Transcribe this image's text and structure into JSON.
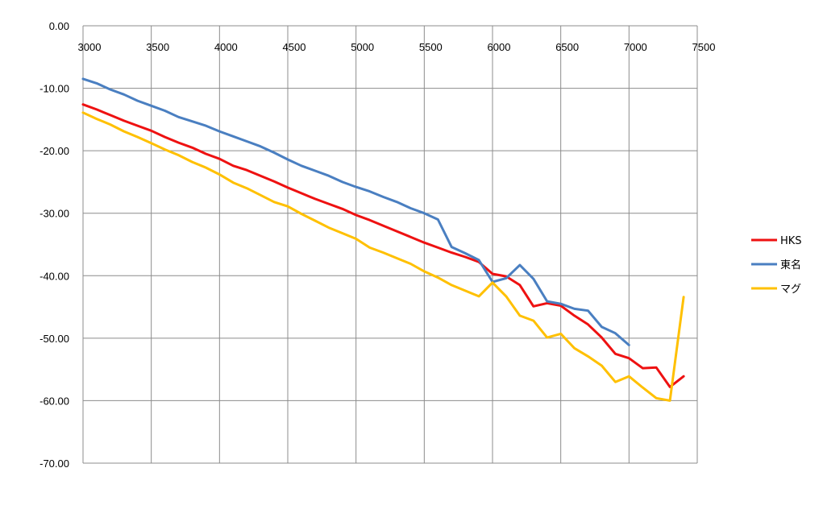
{
  "chart_data": {
    "type": "line",
    "title": "",
    "xlabel": "",
    "ylabel": "",
    "xlim": [
      3000,
      7500
    ],
    "ylim": [
      -70,
      0
    ],
    "x_ticks": [
      "3000",
      "3500",
      "4000",
      "4500",
      "5000",
      "5500",
      "6000",
      "6500",
      "7000",
      "7500"
    ],
    "y_ticks": [
      "0.00",
      "-10.00",
      "-20.00",
      "-30.00",
      "-40.00",
      "-50.00",
      "-60.00",
      "-70.00"
    ],
    "grid": true,
    "legend_position": "right",
    "series": [
      {
        "name": "HKS",
        "color": "#ee1111",
        "x": [
          3000,
          3100,
          3200,
          3300,
          3400,
          3500,
          3600,
          3700,
          3800,
          3900,
          4000,
          4100,
          4200,
          4300,
          4400,
          4500,
          4600,
          4700,
          4800,
          4900,
          5000,
          5100,
          5200,
          5300,
          5400,
          5500,
          5600,
          5700,
          5800,
          5900,
          6000,
          6100,
          6200,
          6300,
          6400,
          6500,
          6600,
          6700,
          6800,
          6900,
          7000,
          7100,
          7200,
          7300,
          7400
        ],
        "values": [
          -12.6,
          -13.4,
          -14.3,
          -15.2,
          -16,
          -16.8,
          -17.8,
          -18.7,
          -19.5,
          -20.5,
          -21.3,
          -22.4,
          -23.1,
          -24,
          -24.9,
          -25.9,
          -26.8,
          -27.7,
          -28.5,
          -29.3,
          -30.3,
          -31.1,
          -32,
          -32.9,
          -33.8,
          -34.7,
          -35.5,
          -36.3,
          -37,
          -37.8,
          -39.7,
          -40.1,
          -41.5,
          -44.9,
          -44.4,
          -44.8,
          -46.4,
          -47.8,
          -49.9,
          -52.5,
          -53.2,
          -54.8,
          -54.7,
          -57.8,
          -56.1
        ]
      },
      {
        "name": "東名",
        "color": "#4a7fc1",
        "x": [
          3000,
          3100,
          3200,
          3300,
          3400,
          3500,
          3600,
          3700,
          3800,
          3900,
          4000,
          4100,
          4200,
          4300,
          4400,
          4500,
          4600,
          4700,
          4800,
          4900,
          5000,
          5100,
          5200,
          5300,
          5400,
          5500,
          5600,
          5700,
          5800,
          5900,
          6000,
          6100,
          6200,
          6300,
          6400,
          6500,
          6600,
          6700,
          6800,
          6900,
          7000
        ],
        "values": [
          -8.5,
          -9.2,
          -10.2,
          -11,
          -12,
          -12.8,
          -13.6,
          -14.6,
          -15.3,
          -16,
          -16.9,
          -17.7,
          -18.5,
          -19.3,
          -20.3,
          -21.4,
          -22.4,
          -23.2,
          -24,
          -25,
          -25.8,
          -26.5,
          -27.4,
          -28.2,
          -29.2,
          -30,
          -31,
          -35.4,
          -36.4,
          -37.5,
          -41,
          -40.4,
          -38.3,
          -40.5,
          -44.1,
          -44.5,
          -45.3,
          -45.6,
          -48.2,
          -49.2,
          -51.1
        ]
      },
      {
        "name": "マグ",
        "color": "#ffc000",
        "x": [
          3000,
          3100,
          3200,
          3300,
          3400,
          3500,
          3600,
          3700,
          3800,
          3900,
          4000,
          4100,
          4200,
          4300,
          4400,
          4500,
          4600,
          4700,
          4800,
          4900,
          5000,
          5100,
          5200,
          5300,
          5400,
          5500,
          5600,
          5700,
          5800,
          5900,
          6000,
          6100,
          6200,
          6300,
          6400,
          6500,
          6600,
          6700,
          6800,
          6900,
          7000,
          7100,
          7200,
          7300,
          7400
        ],
        "values": [
          -13.9,
          -14.9,
          -15.8,
          -16.9,
          -17.8,
          -18.8,
          -19.8,
          -20.7,
          -21.8,
          -22.7,
          -23.8,
          -25.1,
          -26,
          -27.1,
          -28.2,
          -28.9,
          -30.1,
          -31.2,
          -32.3,
          -33.2,
          -34.1,
          -35.5,
          -36.3,
          -37.2,
          -38.1,
          -39.3,
          -40.3,
          -41.5,
          -42.4,
          -43.3,
          -41.1,
          -43.3,
          -46.4,
          -47.2,
          -49.9,
          -49.3,
          -51.6,
          -52.9,
          -54.4,
          -57,
          -56.1,
          -57.9,
          -59.6,
          -60,
          -43.4
        ]
      }
    ]
  }
}
